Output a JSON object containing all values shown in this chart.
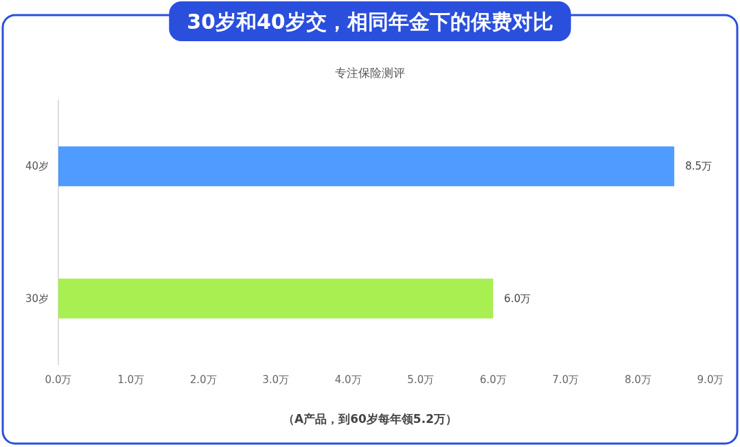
{
  "chart_data": {
    "type": "bar",
    "orientation": "horizontal",
    "title": "30岁和40岁交，相同年金下的保费对比",
    "subtitle": "专注保险测评",
    "categories": [
      "40岁",
      "30岁"
    ],
    "values": [
      8.5,
      6.0
    ],
    "colors": [
      "#4f9bff",
      "#a8ef52"
    ],
    "value_labels": [
      "8.5万",
      "6.0万"
    ],
    "xlim": [
      0,
      9
    ],
    "xticks": [
      {
        "value": 0,
        "label": "0.0万"
      },
      {
        "value": 1,
        "label": "1.0万"
      },
      {
        "value": 2,
        "label": "2.0万"
      },
      {
        "value": 3,
        "label": "3.0万"
      },
      {
        "value": 4,
        "label": "4.0万"
      },
      {
        "value": 5,
        "label": "5.0万"
      },
      {
        "value": 6,
        "label": "6.0万"
      },
      {
        "value": 7,
        "label": "7.0万"
      },
      {
        "value": 8,
        "label": "8.0万"
      },
      {
        "value": 9,
        "label": "9.0万"
      }
    ],
    "annotations": [
      "（A产品，到60岁每年领5.2万）"
    ],
    "grid": false
  }
}
